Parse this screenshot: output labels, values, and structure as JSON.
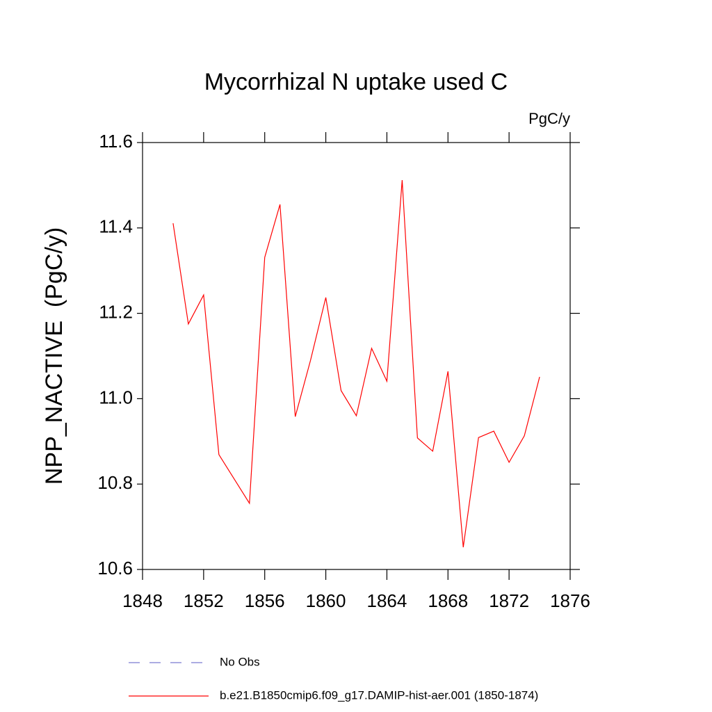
{
  "chart_data": {
    "type": "line",
    "title": "Mycorrhizal N uptake used C",
    "units_label": "PgC/y",
    "y_label": "NPP_NACTIVE  (PgC/y)",
    "x": [
      1850,
      1851,
      1852,
      1853,
      1854,
      1855,
      1856,
      1857,
      1858,
      1859,
      1860,
      1861,
      1862,
      1863,
      1864,
      1865,
      1866,
      1867,
      1868,
      1869,
      1870,
      1871,
      1872,
      1873,
      1874
    ],
    "series": [
      {
        "name": "b.e21.B1850cmip6.f09_g17.DAMIP-hist-aer.001 (1850-1874)",
        "color": "#ff0000",
        "values": [
          11.411,
          11.175,
          11.243,
          10.869,
          10.812,
          10.755,
          11.331,
          11.455,
          10.958,
          11.09,
          11.237,
          11.019,
          10.96,
          11.118,
          11.041,
          11.512,
          10.908,
          10.877,
          11.064,
          10.652,
          10.909,
          10.924,
          10.851,
          10.913,
          11.051
        ]
      }
    ],
    "legend_items": [
      {
        "name": "No Obs",
        "color": "#7a7ad0",
        "dashed": true
      }
    ],
    "xlim": [
      1848,
      1876
    ],
    "xticks": [
      1848,
      1852,
      1856,
      1860,
      1864,
      1868,
      1872,
      1876
    ],
    "ylim": [
      10.6,
      11.6
    ],
    "yticks": [
      10.6,
      10.8,
      {
        "value": 11,
        "label": "11.0"
      },
      11.2,
      11.4,
      11.6
    ],
    "grid": false
  }
}
